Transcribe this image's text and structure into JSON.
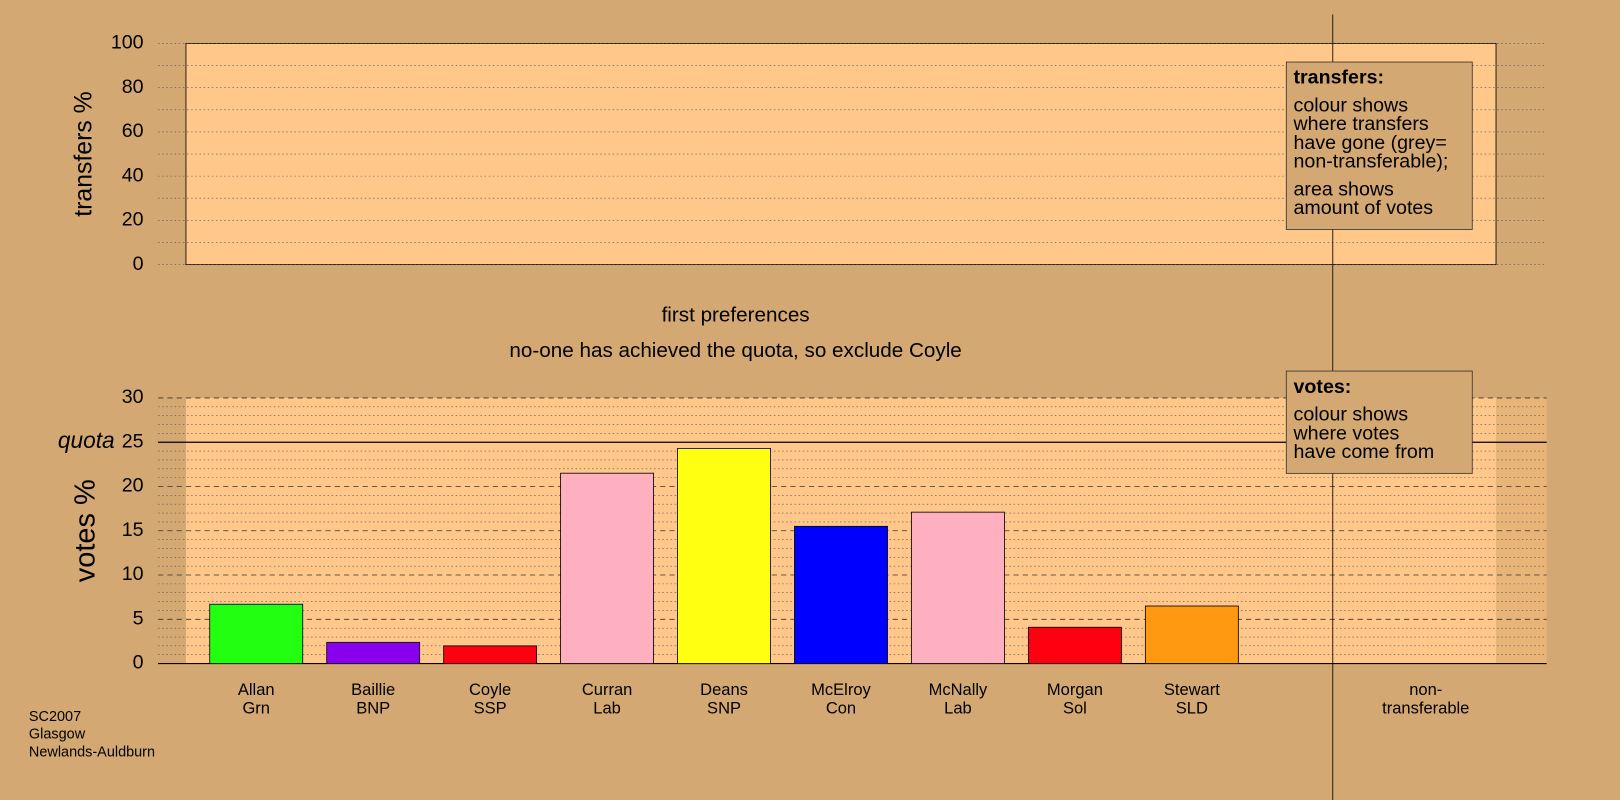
{
  "chart_data": [
    {
      "type": "empty",
      "ylabel": "transfers %",
      "ylim": [
        0,
        100
      ],
      "yticks": [
        0,
        20,
        40,
        60,
        80,
        100
      ],
      "minor_yticks": [
        10,
        30,
        50,
        70,
        90
      ],
      "legend_title": "transfers:",
      "legend_lines": [
        [
          "colour shows",
          "where transfers",
          "have gone (grey=",
          "non-transferable);"
        ],
        [
          "area shows",
          "amount of votes"
        ]
      ]
    },
    {
      "type": "bar",
      "title": "first preferences",
      "subtitle": "no-one has achieved the quota, so exclude Coyle",
      "ylabel": "votes %",
      "ylim": [
        0,
        30
      ],
      "yticks": [
        0,
        5,
        10,
        15,
        20,
        25,
        30
      ],
      "minor_yticks": [
        1,
        2,
        3,
        4,
        6,
        7,
        8,
        9,
        11,
        12,
        13,
        14,
        16,
        17,
        18,
        19,
        21,
        22,
        23,
        24,
        26,
        27,
        28,
        29
      ],
      "quota": {
        "label": "quota",
        "value": 25
      },
      "categories": [
        [
          "Allan",
          "Grn"
        ],
        [
          "Baillie",
          "BNP"
        ],
        [
          "Coyle",
          "SSP"
        ],
        [
          "Curran",
          "Lab"
        ],
        [
          "Deans",
          "SNP"
        ],
        [
          "McElroy",
          "Con"
        ],
        [
          "McNally",
          "Lab"
        ],
        [
          "Morgan",
          "Sol"
        ],
        [
          "Stewart",
          "SLD"
        ],
        null,
        [
          "non-",
          "transferable"
        ]
      ],
      "values": [
        6.7,
        2.4,
        2.0,
        21.5,
        24.3,
        15.5,
        17.1,
        4.1,
        6.5,
        null,
        null
      ],
      "colors": [
        "#22ff11",
        "#8800ee",
        "#ff0011",
        "#ffb0c0",
        "#ffff11",
        "#0000ff",
        "#ffb0c0",
        "#ff0011",
        "#ff9911",
        null,
        null
      ],
      "legend_title": "votes:",
      "legend_lines": [
        [
          "colour shows",
          "where votes",
          "have come from"
        ]
      ]
    }
  ],
  "footer": [
    "SC2007",
    "Glasgow",
    "Newlands-Auldburn"
  ]
}
